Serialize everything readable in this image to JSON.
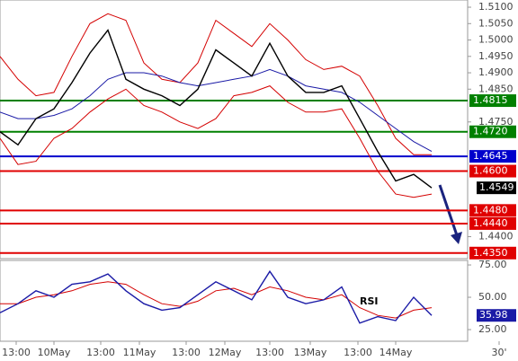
{
  "chart_data": [
    {
      "type": "line",
      "x": [
        0,
        1,
        2,
        3,
        4,
        5,
        6,
        7,
        8,
        9,
        10,
        11,
        12,
        13,
        14,
        15,
        16,
        17,
        18,
        19,
        20,
        21,
        22,
        23,
        24
      ],
      "xlim": [
        0,
        28.8
      ],
      "ylim": [
        1.4333,
        1.5122
      ],
      "yticks": [
        {
          "value": 1.51,
          "label": "1.5100"
        },
        {
          "value": 1.505,
          "label": "1.5050"
        },
        {
          "value": 1.5,
          "label": "1.5000"
        },
        {
          "value": 1.495,
          "label": "1.4950"
        },
        {
          "value": 1.49,
          "label": "1.4900"
        },
        {
          "value": 1.485,
          "label": "1.4850"
        },
        {
          "value": 1.475,
          "label": "1.4750"
        },
        {
          "value": 1.44,
          "label": "1.4400"
        }
      ],
      "series": [
        {
          "color": "#d40000",
          "values": [
            1.495,
            1.488,
            1.483,
            1.484,
            1.495,
            1.505,
            1.508,
            1.506,
            1.493,
            1.488,
            1.487,
            1.493,
            1.506,
            1.502,
            1.498,
            1.505,
            1.5,
            1.494,
            1.491,
            1.492,
            1.489,
            1.48,
            1.47,
            1.465,
            1.465
          ]
        },
        {
          "color": "#d40000",
          "values": [
            1.47,
            1.462,
            1.463,
            1.47,
            1.473,
            1.478,
            1.482,
            1.485,
            1.48,
            1.478,
            1.475,
            1.473,
            1.476,
            1.483,
            1.484,
            1.486,
            1.481,
            1.478,
            1.478,
            1.479,
            1.47,
            1.46,
            1.453,
            1.452,
            1.453
          ]
        },
        {
          "color": "#1a1aa6",
          "values": [
            1.478,
            1.476,
            1.476,
            1.477,
            1.479,
            1.483,
            1.488,
            1.49,
            1.49,
            1.489,
            1.487,
            1.486,
            1.487,
            1.488,
            1.489,
            1.491,
            1.489,
            1.486,
            1.485,
            1.484,
            1.481,
            1.477,
            1.473,
            1.469,
            1.466
          ]
        },
        {
          "color": "#000000",
          "values": [
            1.472,
            1.468,
            1.476,
            1.479,
            1.487,
            1.496,
            1.503,
            1.488,
            1.485,
            1.483,
            1.48,
            1.485,
            1.497,
            1.493,
            1.489,
            1.499,
            1.489,
            1.484,
            1.484,
            1.486,
            1.476,
            1.466,
            1.457,
            1.459,
            1.4549
          ]
        }
      ],
      "levels": [
        {
          "value": 1.4815,
          "label": "1.4815",
          "color": "#008000"
        },
        {
          "value": 1.472,
          "label": "1.4720",
          "color": "#008000"
        },
        {
          "value": 1.4645,
          "label": "1.4645",
          "color": "#0000cc"
        },
        {
          "value": 1.46,
          "label": "1.4600",
          "color": "#e00000"
        },
        {
          "value": 1.448,
          "label": "1.4480",
          "color": "#e00000"
        },
        {
          "value": 1.444,
          "label": "1.4440",
          "color": "#e00000"
        },
        {
          "value": 1.435,
          "label": "1.4350",
          "color": "#e00000"
        }
      ],
      "last": {
        "value": 1.4549,
        "label": "1.4549",
        "color": "#000000"
      }
    },
    {
      "type": "line",
      "title": "RSI",
      "x": [
        0,
        1,
        2,
        3,
        4,
        5,
        6,
        7,
        8,
        9,
        10,
        11,
        12,
        13,
        14,
        15,
        16,
        17,
        18,
        19,
        20,
        21,
        22,
        23,
        24
      ],
      "xlim": [
        0,
        28.8
      ],
      "ylim": [
        16,
        78.5
      ],
      "yticks": [
        {
          "value": 75,
          "label": "75.00"
        },
        {
          "value": 50,
          "label": "50.00"
        },
        {
          "value": 25,
          "label": "25.00"
        }
      ],
      "xticks": [
        {
          "value": 0.9,
          "label": "13:00"
        },
        {
          "value": 3,
          "label": "10May"
        },
        {
          "value": 5.6,
          "label": "13:00"
        },
        {
          "value": 7.75,
          "label": "11May"
        },
        {
          "value": 10.35,
          "label": "13:00"
        },
        {
          "value": 12.5,
          "label": "12May"
        },
        {
          "value": 15,
          "label": "13:00"
        },
        {
          "value": 17.25,
          "label": "13May"
        },
        {
          "value": 19.9,
          "label": "13:00"
        },
        {
          "value": 22,
          "label": "14May"
        },
        {
          "value": 27.75,
          "label": "30'"
        }
      ],
      "series": [
        {
          "color": "#d40000",
          "values": [
            45,
            45,
            50,
            52,
            55,
            60,
            62,
            60,
            52,
            45,
            43,
            47,
            55,
            57,
            52,
            58,
            55,
            50,
            48,
            52,
            42,
            36,
            34,
            40,
            42
          ]
        },
        {
          "color": "#1a1aa6",
          "values": [
            38,
            45,
            55,
            50,
            60,
            62,
            68,
            55,
            45,
            40,
            42,
            52,
            62,
            55,
            48,
            70,
            50,
            45,
            48,
            58,
            30,
            35,
            32,
            50,
            36
          ]
        }
      ],
      "last": {
        "value": 35.98,
        "label": "35.98",
        "color": "#1a1aa6"
      }
    }
  ]
}
